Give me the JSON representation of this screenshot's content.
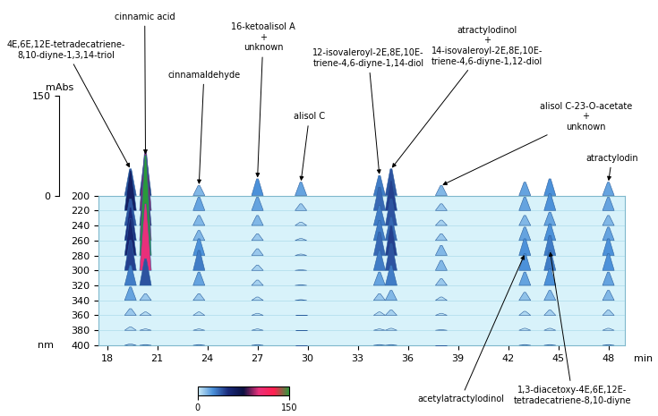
{
  "chart_data": {
    "type": "chromatogram_3d",
    "x_label": "min",
    "y_label": "nm",
    "z_label": "mAbs",
    "xlim": [
      17.5,
      49
    ],
    "xticks": [
      18,
      21,
      24,
      27,
      30,
      33,
      36,
      39,
      42,
      45,
      48
    ],
    "ylim": [
      400,
      200
    ],
    "yticks": [
      200,
      220,
      240,
      260,
      280,
      300,
      320,
      340,
      360,
      380,
      400
    ],
    "zlim": [
      0,
      150
    ],
    "zticks": [
      0,
      150
    ],
    "colorbar_range": [
      0,
      150
    ],
    "colorbar_ticks": [
      0,
      150
    ],
    "wavelengths": [
      200,
      220,
      240,
      260,
      280,
      300,
      320,
      340,
      360,
      380,
      400
    ],
    "peaks": [
      {
        "name": "4E,6E,12E-tetradecatriene-\n8,10-diyne-1,3,14-triol",
        "time": 19.4,
        "values": [
          40,
          60,
          40,
          50,
          55,
          45,
          30,
          20,
          10,
          5,
          2
        ]
      },
      {
        "name": "cinnamic acid",
        "time": 20.3,
        "values": [
          60,
          90,
          80,
          120,
          150,
          100,
          40,
          10,
          5,
          2,
          1
        ]
      },
      {
        "name": "cinnamaldehyde",
        "time": 23.5,
        "values": [
          15,
          20,
          15,
          15,
          25,
          30,
          20,
          10,
          5,
          2,
          1
        ]
      },
      {
        "name": "16-ketoalisol A\n+\nunknown",
        "time": 27,
        "values": [
          25,
          20,
          15,
          10,
          10,
          8,
          8,
          5,
          3,
          2,
          1
        ]
      },
      {
        "name": "alisol C",
        "time": 29.6,
        "values": [
          20,
          10,
          5,
          3,
          2,
          1,
          1,
          1,
          0,
          0,
          0
        ]
      },
      {
        "name": "12-isovaleroyl-2E,8E,10E-\ntriene-4,6-diyne-1,14-diol",
        "time": 34.3,
        "values": [
          30,
          35,
          30,
          30,
          35,
          30,
          20,
          10,
          5,
          2,
          1
        ]
      },
      {
        "name": "atractylodinol\n+\n14-isovaleroyl-2E,8E,10E-\ntriene-4,6-diyne-1,12-diol",
        "time": 35,
        "values": [
          40,
          45,
          40,
          35,
          45,
          40,
          30,
          15,
          8,
          3,
          1
        ]
      },
      {
        "name": "alisol C-23-O-acetate\n+\nunknown",
        "time": 38,
        "values": [
          15,
          10,
          8,
          10,
          15,
          15,
          10,
          5,
          3,
          1,
          0
        ]
      },
      {
        "name": "acetylatractylodinol",
        "time": 43,
        "values": [
          20,
          20,
          15,
          20,
          25,
          25,
          20,
          12,
          6,
          3,
          1
        ]
      },
      {
        "name": "1,3-diacetoxy-4E,6E,12E-\ntetradecatriene-8,10-diyne",
        "time": 44.5,
        "values": [
          25,
          25,
          20,
          25,
          30,
          30,
          25,
          15,
          8,
          3,
          1
        ]
      },
      {
        "name": "atractylodin",
        "time": 48,
        "values": [
          20,
          20,
          15,
          20,
          25,
          25,
          20,
          15,
          8,
          3,
          1
        ]
      }
    ]
  }
}
